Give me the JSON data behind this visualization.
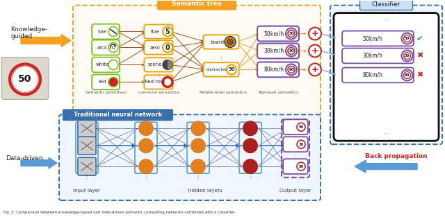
{
  "bg": "#ffffff",
  "st_title": "Semantic tree",
  "nn_title": "Traditional neural network",
  "cl_title": "Classifier",
  "kg_label": "Knowledge-\nguided",
  "dd_label": "Data-driven",
  "back_prop_label": "Back propagation",
  "prim_labels": [
    "line",
    "arcs",
    "white",
    "red"
  ],
  "low_labels": [
    "five",
    "zero",
    "scene",
    "Red ring"
  ],
  "mid_labels": [
    "board",
    "character"
  ],
  "top_labels": [
    "50km/h",
    "30km/h",
    "80km/h"
  ],
  "top_nums": [
    "50",
    "30",
    "80"
  ],
  "cl_nums": [
    "50",
    "30",
    "80"
  ],
  "layer_labels": [
    "Semantic primitives",
    "Low-level semantics",
    "Middle-level semantics",
    "Top-level semantics"
  ],
  "nn_layer_labels": [
    "Input layer",
    "Hidden layers",
    "Output layer"
  ],
  "orange": "#f5a020",
  "blue_dark": "#3a6faa",
  "blue_light": "#5b9bd5",
  "purple": "#7b4fa0",
  "red": "#dd2222",
  "green": "#22aa22",
  "brown": "#8b4513",
  "olive": "#7a8a20"
}
